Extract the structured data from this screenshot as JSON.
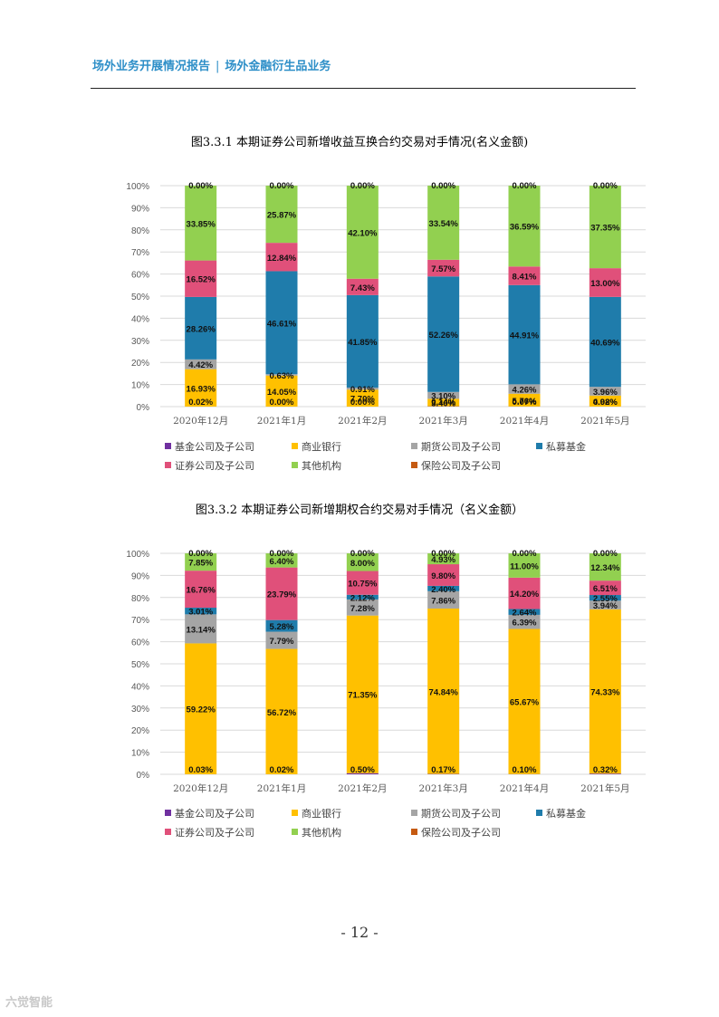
{
  "header": {
    "left": "场外业务开展情况报告",
    "sep": "|",
    "right": "场外金融衍生品业务"
  },
  "figures": [
    {
      "title": "图3.3.1 本期证券公司新增收益互换合约交易对手情况(名义金额)"
    },
    {
      "title": "图3.3.2 本期证券公司新增期权合约交易对手情况（名义金额）"
    }
  ],
  "legend": {
    "items": [
      "基金公司及子公司",
      "商业银行",
      "期货公司及子公司",
      "私募基金",
      "证券公司及子公司",
      "其他机构",
      "保险公司及子公司"
    ],
    "colors": [
      "#7030a0",
      "#ffc000",
      "#a5a5a5",
      "#1f7cab",
      "#e0507a",
      "#92d050",
      "#c55a11"
    ]
  },
  "chart_data": [
    {
      "type": "bar",
      "stacked": true,
      "categories": [
        "2020年12月",
        "2021年1月",
        "2021年2月",
        "2021年3月",
        "2021年4月",
        "2021年5月"
      ],
      "yticks": [
        "0%",
        "10%",
        "20%",
        "30%",
        "40%",
        "50%",
        "60%",
        "70%",
        "80%",
        "90%",
        "100%"
      ],
      "ylim": [
        0,
        100
      ],
      "grid": true,
      "legend_position": "bottom",
      "series": [
        {
          "name": "基金公司及子公司",
          "values": [
            0.02,
            0.0,
            0.0,
            0.14,
            0.07,
            0.02
          ],
          "labels": [
            "0.02%",
            "0.00%",
            "0.00%",
            "0.14%",
            "0.07%",
            "0.02%"
          ]
        },
        {
          "name": "商业银行",
          "values": [
            16.93,
            14.05,
            7.7,
            3.4,
            5.76,
            4.98
          ],
          "labels": [
            "16.93%",
            "14.05%",
            "7.70%",
            "3.40%",
            "5.76%",
            "4.98%"
          ]
        },
        {
          "name": "期货公司及子公司",
          "values": [
            4.42,
            0.63,
            0.91,
            3.1,
            4.26,
            3.96
          ],
          "labels": [
            "4.42%",
            "0.63%",
            "0.91%",
            "3.10%",
            "4.26%",
            "3.96%"
          ]
        },
        {
          "name": "私募基金",
          "values": [
            28.26,
            46.61,
            41.85,
            52.26,
            44.91,
            40.69
          ],
          "labels": [
            "28.26%",
            "46.61%",
            "41.85%",
            "52.26%",
            "44.91%",
            "40.69%"
          ]
        },
        {
          "name": "证券公司及子公司",
          "values": [
            16.52,
            12.84,
            7.43,
            7.57,
            8.41,
            13.0
          ],
          "labels": [
            "16.52%",
            "12.84%",
            "7.43%",
            "7.57%",
            "8.41%",
            "13.00%"
          ]
        },
        {
          "name": "其他机构",
          "values": [
            33.85,
            25.87,
            42.1,
            33.54,
            36.59,
            37.35
          ],
          "labels": [
            "33.85%",
            "25.87%",
            "42.10%",
            "33.54%",
            "36.59%",
            "37.35%"
          ]
        },
        {
          "name": "保险公司及子公司",
          "values": [
            0.0,
            0.0,
            0.0,
            0.0,
            0.0,
            0.0
          ],
          "labels": [
            "0.00%",
            "0.00%",
            "0.00%",
            "0.00%",
            "0.00%",
            "0.00%"
          ]
        }
      ]
    },
    {
      "type": "bar",
      "stacked": true,
      "categories": [
        "2020年12月",
        "2021年1月",
        "2021年2月",
        "2021年3月",
        "2021年4月",
        "2021年5月"
      ],
      "yticks": [
        "0%",
        "10%",
        "20%",
        "30%",
        "40%",
        "50%",
        "60%",
        "70%",
        "80%",
        "90%",
        "100%"
      ],
      "ylim": [
        0,
        100
      ],
      "grid": true,
      "legend_position": "bottom",
      "series": [
        {
          "name": "基金公司及子公司",
          "values": [
            0.03,
            0.02,
            0.5,
            0.17,
            0.1,
            0.32
          ],
          "labels": [
            "0.03%",
            "0.02%",
            "0.50%",
            "0.17%",
            "0.10%",
            "0.32%"
          ]
        },
        {
          "name": "商业银行",
          "values": [
            59.22,
            56.72,
            71.35,
            74.84,
            65.67,
            74.33
          ],
          "labels": [
            "59.22%",
            "56.72%",
            "71.35%",
            "74.84%",
            "65.67%",
            "74.33%"
          ]
        },
        {
          "name": "期货公司及子公司",
          "values": [
            13.14,
            7.79,
            7.28,
            7.86,
            6.39,
            3.94
          ],
          "labels": [
            "13.14%",
            "7.79%",
            "7.28%",
            "7.86%",
            "6.39%",
            "3.94%"
          ]
        },
        {
          "name": "私募基金",
          "values": [
            3.01,
            5.28,
            2.12,
            2.4,
            2.64,
            2.55
          ],
          "labels": [
            "3.01%",
            "5.28%",
            "2.12%",
            "2.40%",
            "2.64%",
            "2.55%"
          ]
        },
        {
          "name": "证券公司及子公司",
          "values": [
            16.76,
            23.79,
            10.75,
            9.8,
            14.2,
            6.51
          ],
          "labels": [
            "16.76%",
            "23.79%",
            "10.75%",
            "9.80%",
            "14.20%",
            "6.51%"
          ]
        },
        {
          "name": "其他机构",
          "values": [
            7.85,
            6.4,
            8.0,
            4.93,
            11.0,
            12.34
          ],
          "labels": [
            "7.85%",
            "6.40%",
            "8.00%",
            "4.93%",
            "11.00%",
            "12.34%"
          ]
        },
        {
          "name": "保险公司及子公司",
          "values": [
            0.0,
            0.0,
            0.0,
            0.0,
            0.0,
            0.0
          ],
          "labels": [
            "0.00%",
            "0.00%",
            "0.00%",
            "0.00%",
            "0.00%",
            "0.00%"
          ]
        }
      ]
    }
  ],
  "page_number": "- 12 -",
  "watermark": "六觉智能"
}
